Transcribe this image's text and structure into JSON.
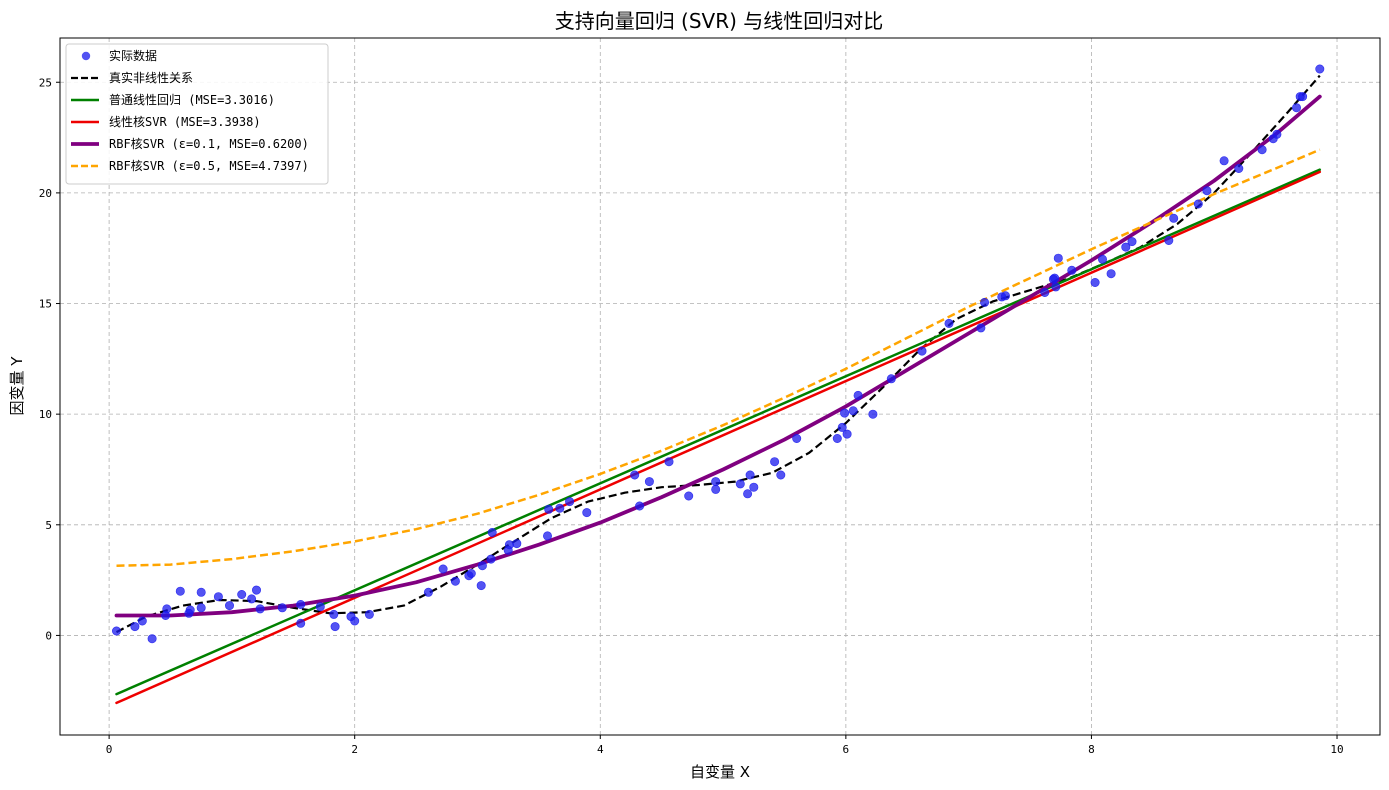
{
  "chart_data": {
    "type": "scatter",
    "title": "支持向量回归 (SVR) 与线性回归对比",
    "xlabel": "自变量 X",
    "ylabel": "因变量 Y",
    "xlim": [
      -0.4,
      10.35
    ],
    "ylim": [
      -4.5,
      27
    ],
    "xticks": [
      0,
      2,
      4,
      6,
      8,
      10
    ],
    "yticks": [
      0,
      5,
      10,
      15,
      20,
      25
    ],
    "grid": true,
    "legend_position": "top-left",
    "scatter_series": {
      "name": "实际数据",
      "color": "#1a1aee",
      "points": [
        [
          0.06,
          0.2
        ],
        [
          0.21,
          0.4
        ],
        [
          0.27,
          0.65
        ],
        [
          0.35,
          -0.15
        ],
        [
          0.46,
          0.9
        ],
        [
          0.47,
          1.2
        ],
        [
          0.58,
          2.0
        ],
        [
          0.65,
          1.0
        ],
        [
          0.66,
          1.15
        ],
        [
          0.75,
          1.25
        ],
        [
          0.75,
          1.95
        ],
        [
          0.89,
          1.75
        ],
        [
          0.98,
          1.35
        ],
        [
          1.08,
          1.85
        ],
        [
          1.16,
          1.65
        ],
        [
          1.2,
          2.05
        ],
        [
          1.23,
          1.2
        ],
        [
          1.41,
          1.25
        ],
        [
          1.56,
          1.4
        ],
        [
          1.56,
          0.55
        ],
        [
          1.72,
          1.3
        ],
        [
          1.83,
          0.95
        ],
        [
          1.84,
          0.4
        ],
        [
          1.97,
          0.85
        ],
        [
          2.0,
          0.65
        ],
        [
          2.12,
          0.95
        ],
        [
          2.6,
          1.95
        ],
        [
          2.72,
          3.0
        ],
        [
          2.82,
          2.45
        ],
        [
          2.93,
          2.7
        ],
        [
          2.95,
          2.8
        ],
        [
          3.03,
          2.25
        ],
        [
          3.04,
          3.15
        ],
        [
          3.11,
          3.45
        ],
        [
          3.12,
          4.65
        ],
        [
          3.25,
          3.85
        ],
        [
          3.26,
          4.1
        ],
        [
          3.32,
          4.15
        ],
        [
          3.57,
          4.5
        ],
        [
          3.58,
          5.7
        ],
        [
          3.67,
          5.75
        ],
        [
          3.75,
          6.05
        ],
        [
          3.89,
          5.55
        ],
        [
          4.28,
          7.25
        ],
        [
          4.32,
          5.85
        ],
        [
          4.4,
          6.95
        ],
        [
          4.56,
          7.85
        ],
        [
          4.72,
          6.3
        ],
        [
          4.94,
          6.6
        ],
        [
          4.94,
          6.95
        ],
        [
          5.14,
          6.85
        ],
        [
          5.2,
          6.4
        ],
        [
          5.22,
          7.25
        ],
        [
          5.25,
          6.7
        ],
        [
          5.42,
          7.85
        ],
        [
          5.47,
          7.25
        ],
        [
          5.6,
          8.9
        ],
        [
          5.93,
          8.9
        ],
        [
          5.97,
          9.4
        ],
        [
          5.99,
          10.05
        ],
        [
          6.01,
          9.1
        ],
        [
          6.06,
          10.15
        ],
        [
          6.1,
          10.85
        ],
        [
          6.22,
          10.0
        ],
        [
          6.37,
          11.6
        ],
        [
          6.62,
          12.85
        ],
        [
          6.84,
          14.1
        ],
        [
          7.1,
          13.9
        ],
        [
          7.13,
          15.05
        ],
        [
          7.27,
          15.3
        ],
        [
          7.3,
          15.35
        ],
        [
          7.62,
          15.5
        ],
        [
          7.69,
          16.1
        ],
        [
          7.7,
          16.15
        ],
        [
          7.71,
          15.75
        ],
        [
          7.73,
          17.05
        ],
        [
          7.84,
          16.5
        ],
        [
          8.03,
          15.95
        ],
        [
          8.09,
          17.0
        ],
        [
          8.16,
          16.35
        ],
        [
          8.28,
          17.55
        ],
        [
          8.33,
          17.8
        ],
        [
          8.63,
          17.85
        ],
        [
          8.67,
          18.85
        ],
        [
          8.87,
          19.5
        ],
        [
          8.94,
          20.1
        ],
        [
          9.08,
          21.45
        ],
        [
          9.2,
          21.1
        ],
        [
          9.39,
          21.95
        ],
        [
          9.48,
          22.45
        ],
        [
          9.51,
          22.65
        ],
        [
          9.67,
          23.85
        ],
        [
          9.7,
          24.35
        ],
        [
          9.72,
          24.35
        ],
        [
          9.86,
          25.6
        ]
      ]
    },
    "line_series": [
      {
        "name": "真实非线性关系",
        "color": "#000000",
        "dash": "dashed",
        "width": 2.2,
        "x": [
          0.06,
          0.3,
          0.6,
          0.9,
          1.2,
          1.5,
          1.8,
          2.1,
          2.4,
          2.7,
          3.0,
          3.3,
          3.6,
          3.9,
          4.2,
          4.5,
          4.8,
          5.1,
          5.4,
          5.7,
          6.0,
          6.3,
          6.6,
          6.9,
          7.2,
          7.5,
          7.8,
          8.1,
          8.4,
          8.7,
          9.0,
          9.3,
          9.6,
          9.86
        ],
        "y": [
          0.15,
          0.85,
          1.35,
          1.6,
          1.55,
          1.25,
          1.0,
          1.05,
          1.35,
          2.2,
          3.2,
          4.25,
          5.3,
          6.05,
          6.45,
          6.7,
          6.8,
          6.95,
          7.35,
          8.25,
          9.6,
          11.2,
          12.9,
          14.3,
          15.1,
          15.6,
          16.1,
          16.8,
          17.55,
          18.6,
          20.0,
          21.8,
          23.65,
          25.3
        ]
      },
      {
        "name": "普通线性回归 (MSE=3.3016)",
        "color": "#008000",
        "dash": "solid",
        "width": 2.5,
        "x": [
          0.06,
          9.86
        ],
        "y": [
          -2.65,
          21.05
        ]
      },
      {
        "name": "线性核SVR (MSE=3.3938)",
        "color": "#ee0000",
        "dash": "solid",
        "width": 2.5,
        "x": [
          0.06,
          9.86
        ],
        "y": [
          -3.05,
          20.95
        ]
      },
      {
        "name": "RBF核SVR (ε=0.1, MSE=0.6200)",
        "color": "#800080",
        "dash": "solid",
        "width": 3.8,
        "x": [
          0.06,
          0.5,
          1.0,
          1.5,
          2.0,
          2.5,
          3.0,
          3.5,
          4.0,
          4.5,
          5.0,
          5.5,
          6.0,
          6.5,
          7.0,
          7.5,
          8.0,
          8.5,
          9.0,
          9.5,
          9.86
        ],
        "y": [
          0.9,
          0.9,
          1.05,
          1.35,
          1.8,
          2.4,
          3.2,
          4.1,
          5.1,
          6.25,
          7.5,
          8.85,
          10.35,
          12.0,
          13.65,
          15.3,
          16.95,
          18.7,
          20.55,
          22.65,
          24.35
        ]
      },
      {
        "name": "RBF核SVR (ε=0.5, MSE=4.7397)",
        "color": "#ffa500",
        "dash": "dashed",
        "width": 2.5,
        "x": [
          0.06,
          0.5,
          1.0,
          1.5,
          2.0,
          2.5,
          3.0,
          3.5,
          4.0,
          4.5,
          5.0,
          5.5,
          6.0,
          6.5,
          7.0,
          7.5,
          8.0,
          8.5,
          9.0,
          9.5,
          9.86
        ],
        "y": [
          3.15,
          3.2,
          3.45,
          3.8,
          4.25,
          4.8,
          5.5,
          6.35,
          7.3,
          8.35,
          9.5,
          10.75,
          12.05,
          13.45,
          14.85,
          16.15,
          17.45,
          18.7,
          19.95,
          21.1,
          21.95
        ]
      }
    ]
  }
}
